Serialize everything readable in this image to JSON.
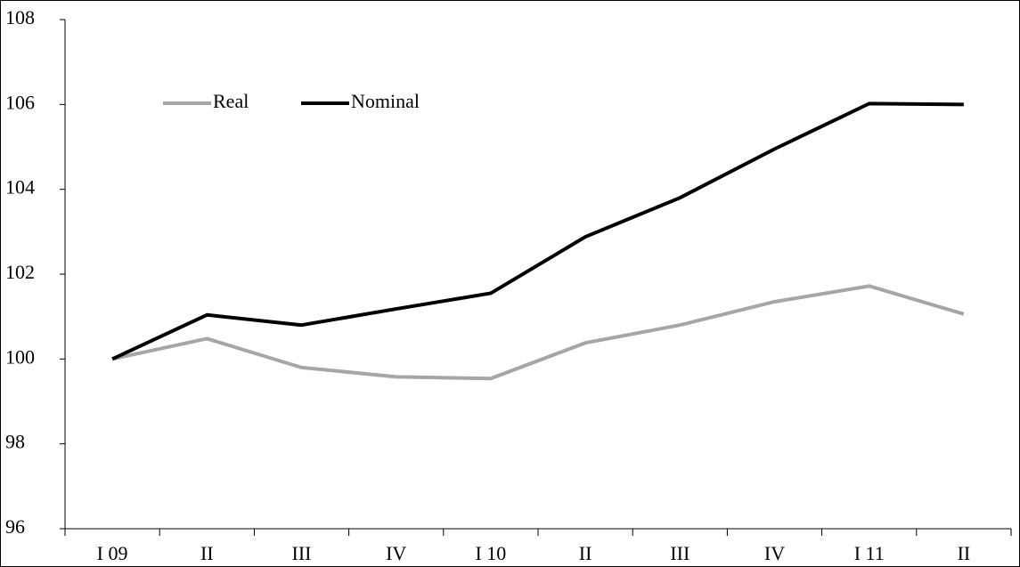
{
  "chart_data": {
    "type": "line",
    "categories": [
      "I 09",
      "II",
      "III",
      "IV",
      "I 10",
      "II",
      "III",
      "IV",
      "I 11",
      "II"
    ],
    "series": [
      {
        "name": "Real",
        "color": "#a6a6a6",
        "values": [
          100,
          100.48,
          99.8,
          99.58,
          99.54,
          100.38,
          100.8,
          101.35,
          101.72,
          101.06
        ]
      },
      {
        "name": "Nominal",
        "color": "#000000",
        "values": [
          100,
          101.04,
          100.8,
          101.18,
          101.55,
          102.88,
          103.8,
          104.95,
          106.02,
          106.0
        ]
      }
    ],
    "ylim": [
      96,
      108
    ],
    "yticks": [
      96,
      98,
      100,
      102,
      104,
      106,
      108
    ],
    "grid": false,
    "legend": "upper left"
  }
}
